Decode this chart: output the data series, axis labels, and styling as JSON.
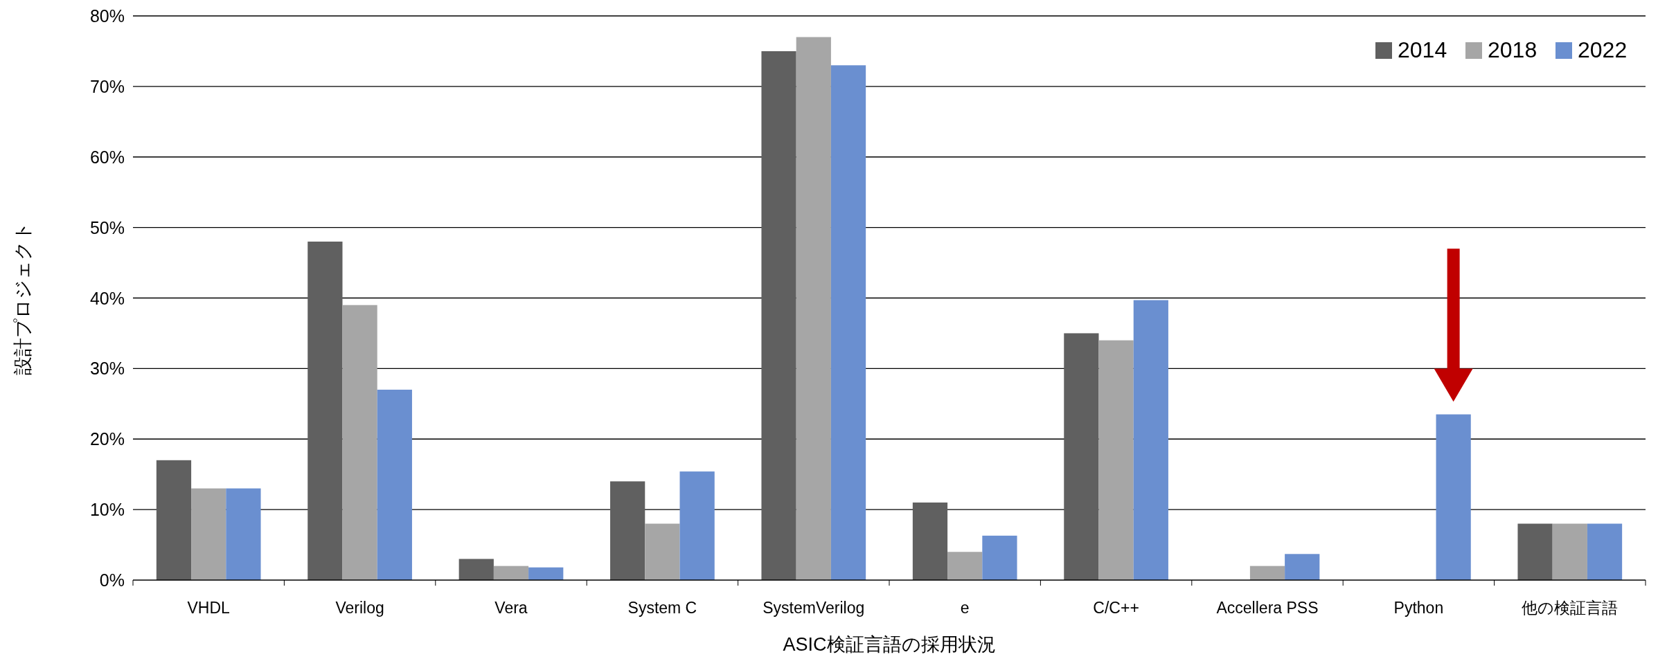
{
  "chart_data": {
    "type": "bar",
    "xlabel": "ASIC検証言語の採用状況",
    "ylabel": "設計プロジェクト",
    "categories": [
      "VHDL",
      "Verilog",
      "Vera",
      "System C",
      "SystemVerilog",
      "e",
      "C/C++",
      "Accellera PSS",
      "Python",
      "他の検証言語"
    ],
    "series": [
      {
        "name": "2014",
        "color": "#606060",
        "values": [
          17,
          48,
          3,
          14,
          75,
          11,
          35,
          null,
          null,
          8
        ]
      },
      {
        "name": "2018",
        "color": "#a6a6a6",
        "values": [
          13,
          39,
          2,
          8,
          77,
          4,
          34,
          2,
          null,
          8
        ]
      },
      {
        "name": "2022",
        "color": "#6a8fd0",
        "values": [
          13,
          27,
          1.8,
          15.4,
          73,
          6.3,
          39.7,
          3.7,
          23.5,
          8
        ]
      }
    ],
    "ylim": [
      0,
      80
    ],
    "yticks": [
      {
        "value": 0,
        "label": "0%"
      },
      {
        "value": 10,
        "label": "10%"
      },
      {
        "value": 20,
        "label": "20%"
      },
      {
        "value": 30,
        "label": "30%"
      },
      {
        "value": 40,
        "label": "40%"
      },
      {
        "value": 50,
        "label": "50%"
      },
      {
        "value": 60,
        "label": "60%"
      },
      {
        "value": 70,
        "label": "70%"
      },
      {
        "value": 80,
        "label": "80%"
      }
    ],
    "grid": "y",
    "legend": "top right"
  }
}
